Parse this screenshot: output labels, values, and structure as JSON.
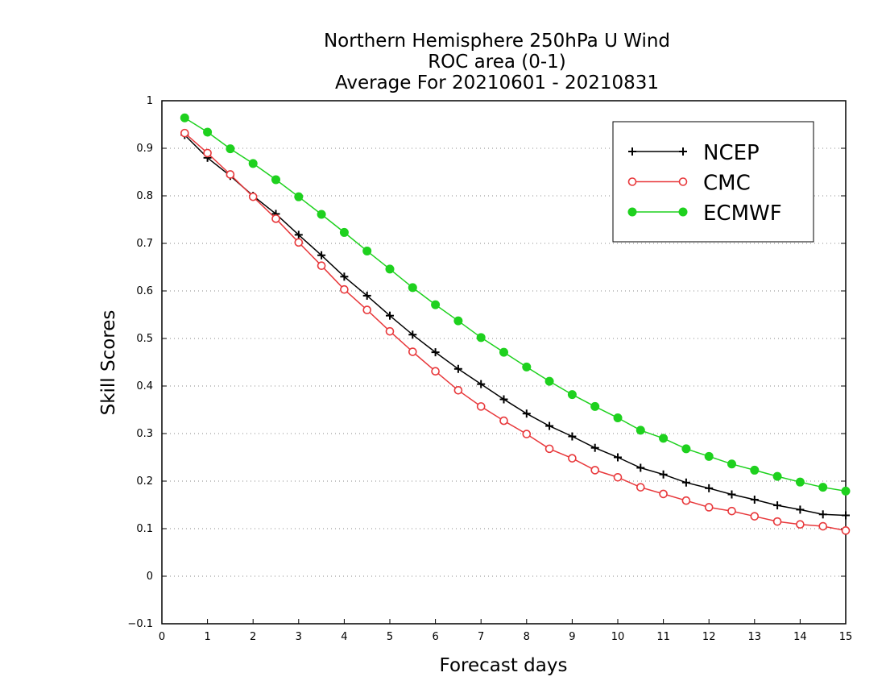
{
  "chart_data": {
    "type": "line",
    "title_lines": [
      "Northern Hemisphere 250hPa U Wind",
      "ROC area (0-1)",
      "Average For 20210601 - 20210831"
    ],
    "xlabel": "Forecast days",
    "ylabel": "Skill Scores",
    "xlim": [
      0,
      15
    ],
    "ylim": [
      -0.1,
      1
    ],
    "x_ticks": [
      "0",
      "1",
      "2",
      "3",
      "4",
      "5",
      "6",
      "7",
      "8",
      "9",
      "10",
      "11",
      "12",
      "13",
      "14",
      "15"
    ],
    "y_ticks": [
      "−0.1",
      "0",
      "0.1",
      "0.2",
      "0.3",
      "0.4",
      "0.5",
      "0.6",
      "0.7",
      "0.8",
      "0.9",
      "1"
    ],
    "grid": "horizontal dotted",
    "legend_position": "top-right",
    "x": [
      0.5,
      1,
      1.5,
      2,
      2.5,
      3,
      3.5,
      4,
      4.5,
      5,
      5.5,
      6,
      6.5,
      7,
      7.5,
      8,
      8.5,
      9,
      9.5,
      10,
      10.5,
      11,
      11.5,
      12,
      12.5,
      13,
      13.5,
      14,
      14.5,
      15
    ],
    "series": [
      {
        "name": "NCEP",
        "color": "#000000",
        "marker": "plus",
        "values": [
          0.928,
          0.88,
          0.842,
          0.8,
          0.762,
          0.718,
          0.675,
          0.63,
          0.59,
          0.548,
          0.508,
          0.471,
          0.436,
          0.404,
          0.372,
          0.342,
          0.316,
          0.294,
          0.27,
          0.25,
          0.228,
          0.214,
          0.197,
          0.185,
          0.172,
          0.161,
          0.149,
          0.14,
          0.13,
          0.128
        ]
      },
      {
        "name": "CMC",
        "color": "#e8383b",
        "marker": "open-circle",
        "values": [
          0.932,
          0.89,
          0.845,
          0.798,
          0.752,
          0.702,
          0.653,
          0.603,
          0.56,
          0.515,
          0.472,
          0.431,
          0.391,
          0.357,
          0.327,
          0.299,
          0.268,
          0.248,
          0.223,
          0.208,
          0.187,
          0.173,
          0.159,
          0.145,
          0.137,
          0.126,
          0.115,
          0.109,
          0.105,
          0.096
        ]
      },
      {
        "name": "ECMWF",
        "color": "#1ed11e",
        "marker": "filled-circle",
        "values": [
          0.964,
          0.934,
          0.899,
          0.868,
          0.834,
          0.798,
          0.761,
          0.723,
          0.684,
          0.646,
          0.607,
          0.571,
          0.537,
          0.502,
          0.471,
          0.44,
          0.41,
          0.382,
          0.357,
          0.333,
          0.307,
          0.29,
          0.268,
          0.252,
          0.236,
          0.223,
          0.21,
          0.198,
          0.187,
          0.179
        ]
      }
    ]
  }
}
